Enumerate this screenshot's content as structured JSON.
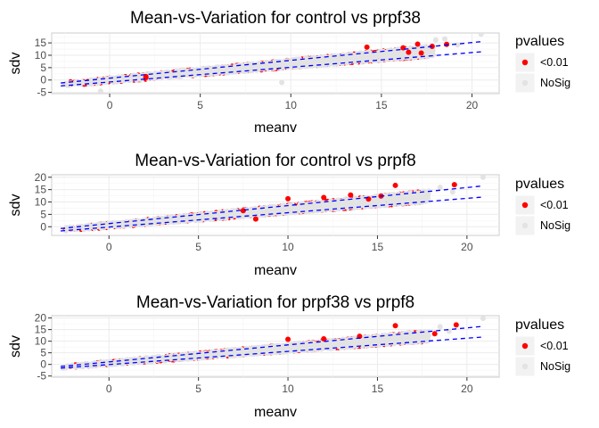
{
  "chart_data": [
    {
      "type": "scatter",
      "title": "Mean-vs-Variation for control vs prpf38",
      "xlabel": "meanv",
      "ylabel": "sdv",
      "x_ticks": [
        "0",
        "5",
        "10",
        "15",
        "20"
      ],
      "y_ticks": [
        "-5",
        "0",
        "5",
        "10",
        "15"
      ],
      "xlim": [
        -3.2,
        21.5
      ],
      "ylim": [
        -5.5,
        19
      ],
      "grid": true,
      "legend": {
        "title": "pvalues",
        "position": "right",
        "entries": [
          "<0.01",
          "NoSig"
        ]
      },
      "colors": {
        "sig": "#ff0000",
        "nosig": "#e3e3e3",
        "line": "#0000ff"
      },
      "band_lines": [
        {
          "x": [
            -2.7,
            20.5
          ],
          "y": [
            -1.2,
            15.5
          ]
        },
        {
          "x": [
            -2.7,
            20.5
          ],
          "y": [
            -2.4,
            11.4
          ]
        }
      ],
      "sig_points": [
        [
          2.0,
          1.0
        ],
        [
          2.0,
          1.4
        ],
        [
          16.2,
          13.0
        ],
        [
          17.0,
          14.5
        ],
        [
          17.8,
          13.6
        ],
        [
          18.6,
          14.4
        ],
        [
          17.2,
          10.9
        ],
        [
          14.2,
          13.3
        ],
        [
          16.5,
          11.2
        ]
      ],
      "nosig_points": [
        [
          20.5,
          18.5
        ],
        [
          18.0,
          16.2
        ],
        [
          18.5,
          16.6
        ],
        [
          19.2,
          14.2
        ],
        [
          9.5,
          -1.0
        ],
        [
          -0.5,
          -4.5
        ]
      ]
    },
    {
      "type": "scatter",
      "title": "Mean-vs-Variation for control vs prpf8",
      "xlabel": "meanv",
      "ylabel": "sdv",
      "x_ticks": [
        "0",
        "5",
        "10",
        "15",
        "20"
      ],
      "y_ticks": [
        "0",
        "5",
        "10",
        "15",
        "20"
      ],
      "xlim": [
        -3.2,
        21.8
      ],
      "ylim": [
        -3.5,
        21
      ],
      "grid": true,
      "legend": {
        "title": "pvalues",
        "position": "right",
        "entries": [
          "<0.01",
          "NoSig"
        ]
      },
      "colors": {
        "sig": "#ff0000",
        "nosig": "#e3e3e3",
        "line": "#0000ff"
      },
      "band_lines": [
        {
          "x": [
            -2.7,
            20.9
          ],
          "y": [
            -0.7,
            16.5
          ]
        },
        {
          "x": [
            -2.7,
            20.9
          ],
          "y": [
            -1.7,
            12.0
          ]
        }
      ],
      "sig_points": [
        [
          16.0,
          16.7
        ],
        [
          19.3,
          17.0
        ],
        [
          12.0,
          11.8
        ],
        [
          10.0,
          11.3
        ],
        [
          7.5,
          6.5
        ],
        [
          13.5,
          12.8
        ],
        [
          15.2,
          12.4
        ],
        [
          8.2,
          3.1
        ],
        [
          14.5,
          11.2
        ]
      ],
      "nosig_points": [
        [
          20.9,
          20.0
        ],
        [
          18.5,
          15.9
        ],
        [
          19.2,
          14.0
        ]
      ]
    },
    {
      "type": "scatter",
      "title": "Mean-vs-Variation for prpf38 vs prpf8",
      "xlabel": "meanv",
      "ylabel": "sdv",
      "x_ticks": [
        "0",
        "5",
        "10",
        "15",
        "20"
      ],
      "y_ticks": [
        "-5",
        "0",
        "5",
        "10",
        "15",
        "20"
      ],
      "xlim": [
        -3.2,
        21.8
      ],
      "ylim": [
        -5.5,
        21
      ],
      "grid": true,
      "legend": {
        "title": "pvalues",
        "position": "right",
        "entries": [
          "<0.01",
          "NoSig"
        ]
      },
      "colors": {
        "sig": "#ff0000",
        "nosig": "#e3e3e3",
        "line": "#0000ff"
      },
      "band_lines": [
        {
          "x": [
            -2.7,
            20.9
          ],
          "y": [
            -0.9,
            16.4
          ]
        },
        {
          "x": [
            -2.7,
            20.9
          ],
          "y": [
            -1.6,
            11.8
          ]
        }
      ],
      "sig_points": [
        [
          10.0,
          10.8
        ],
        [
          16.0,
          16.7
        ],
        [
          19.4,
          17.0
        ],
        [
          12.0,
          11.0
        ],
        [
          14.0,
          12.1
        ],
        [
          18.2,
          13.2
        ]
      ],
      "nosig_points": [
        [
          20.9,
          19.8
        ],
        [
          18.5,
          16.2
        ],
        [
          19.0,
          14.3
        ]
      ]
    }
  ]
}
